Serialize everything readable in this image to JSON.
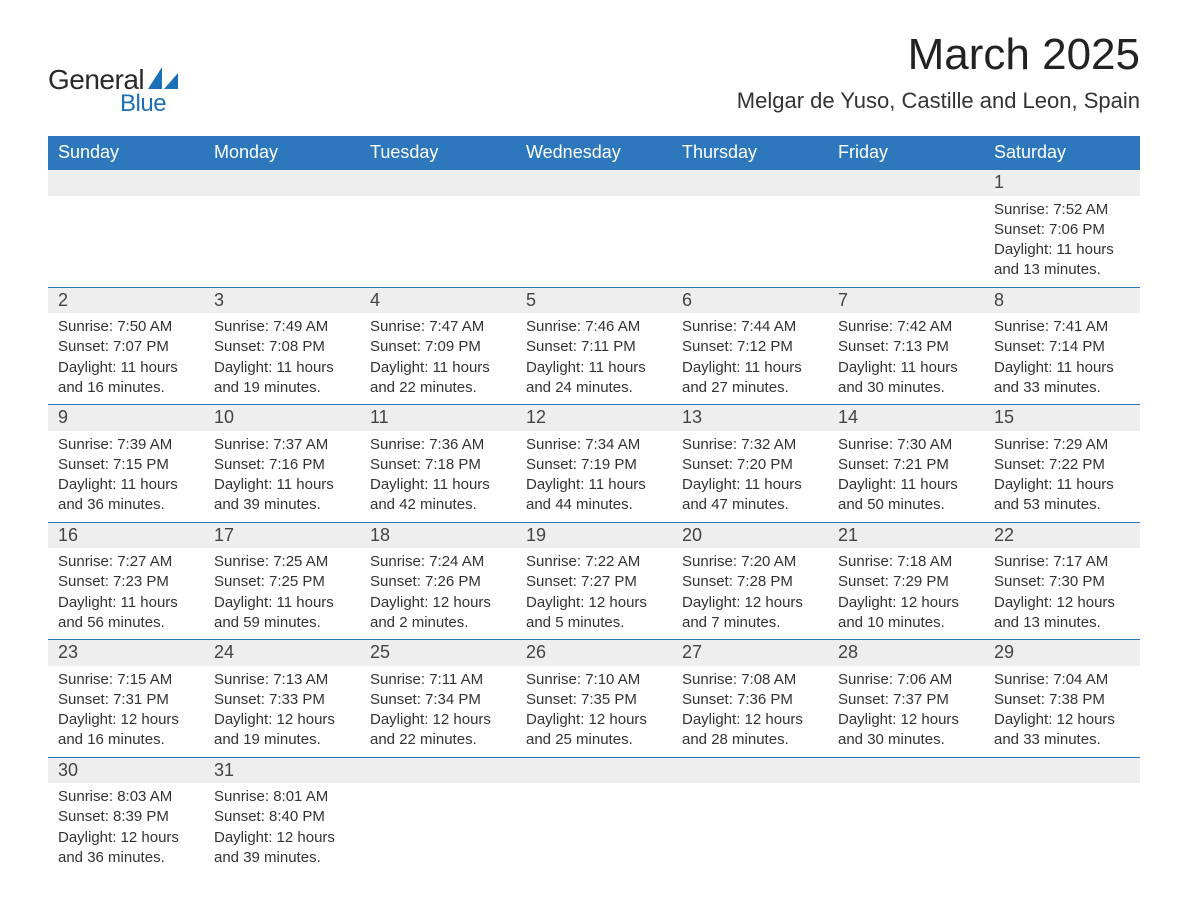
{
  "brand": {
    "word1": "General",
    "word2": "Blue",
    "accent_color": "#1d6fb8"
  },
  "title": "March 2025",
  "subtitle": "Melgar de Yuso, Castille and Leon, Spain",
  "styling": {
    "header_bg": "#2d78bc",
    "header_text": "#ffffff",
    "daynum_bg": "#eeeeee",
    "row_divider": "#2d78bc",
    "body_text": "#333333",
    "title_fontsize": 44,
    "subtitle_fontsize": 22,
    "weekday_fontsize": 18,
    "daynum_fontsize": 18,
    "detail_fontsize": 15,
    "page_bg": "#ffffff",
    "columns": 7
  },
  "weekdays": [
    "Sunday",
    "Monday",
    "Tuesday",
    "Wednesday",
    "Thursday",
    "Friday",
    "Saturday"
  ],
  "weeks": [
    [
      null,
      null,
      null,
      null,
      null,
      null,
      {
        "n": "1",
        "sunrise": "Sunrise: 7:52 AM",
        "sunset": "Sunset: 7:06 PM",
        "daylight": "Daylight: 11 hours and 13 minutes."
      }
    ],
    [
      {
        "n": "2",
        "sunrise": "Sunrise: 7:50 AM",
        "sunset": "Sunset: 7:07 PM",
        "daylight": "Daylight: 11 hours and 16 minutes."
      },
      {
        "n": "3",
        "sunrise": "Sunrise: 7:49 AM",
        "sunset": "Sunset: 7:08 PM",
        "daylight": "Daylight: 11 hours and 19 minutes."
      },
      {
        "n": "4",
        "sunrise": "Sunrise: 7:47 AM",
        "sunset": "Sunset: 7:09 PM",
        "daylight": "Daylight: 11 hours and 22 minutes."
      },
      {
        "n": "5",
        "sunrise": "Sunrise: 7:46 AM",
        "sunset": "Sunset: 7:11 PM",
        "daylight": "Daylight: 11 hours and 24 minutes."
      },
      {
        "n": "6",
        "sunrise": "Sunrise: 7:44 AM",
        "sunset": "Sunset: 7:12 PM",
        "daylight": "Daylight: 11 hours and 27 minutes."
      },
      {
        "n": "7",
        "sunrise": "Sunrise: 7:42 AM",
        "sunset": "Sunset: 7:13 PM",
        "daylight": "Daylight: 11 hours and 30 minutes."
      },
      {
        "n": "8",
        "sunrise": "Sunrise: 7:41 AM",
        "sunset": "Sunset: 7:14 PM",
        "daylight": "Daylight: 11 hours and 33 minutes."
      }
    ],
    [
      {
        "n": "9",
        "sunrise": "Sunrise: 7:39 AM",
        "sunset": "Sunset: 7:15 PM",
        "daylight": "Daylight: 11 hours and 36 minutes."
      },
      {
        "n": "10",
        "sunrise": "Sunrise: 7:37 AM",
        "sunset": "Sunset: 7:16 PM",
        "daylight": "Daylight: 11 hours and 39 minutes."
      },
      {
        "n": "11",
        "sunrise": "Sunrise: 7:36 AM",
        "sunset": "Sunset: 7:18 PM",
        "daylight": "Daylight: 11 hours and 42 minutes."
      },
      {
        "n": "12",
        "sunrise": "Sunrise: 7:34 AM",
        "sunset": "Sunset: 7:19 PM",
        "daylight": "Daylight: 11 hours and 44 minutes."
      },
      {
        "n": "13",
        "sunrise": "Sunrise: 7:32 AM",
        "sunset": "Sunset: 7:20 PM",
        "daylight": "Daylight: 11 hours and 47 minutes."
      },
      {
        "n": "14",
        "sunrise": "Sunrise: 7:30 AM",
        "sunset": "Sunset: 7:21 PM",
        "daylight": "Daylight: 11 hours and 50 minutes."
      },
      {
        "n": "15",
        "sunrise": "Sunrise: 7:29 AM",
        "sunset": "Sunset: 7:22 PM",
        "daylight": "Daylight: 11 hours and 53 minutes."
      }
    ],
    [
      {
        "n": "16",
        "sunrise": "Sunrise: 7:27 AM",
        "sunset": "Sunset: 7:23 PM",
        "daylight": "Daylight: 11 hours and 56 minutes."
      },
      {
        "n": "17",
        "sunrise": "Sunrise: 7:25 AM",
        "sunset": "Sunset: 7:25 PM",
        "daylight": "Daylight: 11 hours and 59 minutes."
      },
      {
        "n": "18",
        "sunrise": "Sunrise: 7:24 AM",
        "sunset": "Sunset: 7:26 PM",
        "daylight": "Daylight: 12 hours and 2 minutes."
      },
      {
        "n": "19",
        "sunrise": "Sunrise: 7:22 AM",
        "sunset": "Sunset: 7:27 PM",
        "daylight": "Daylight: 12 hours and 5 minutes."
      },
      {
        "n": "20",
        "sunrise": "Sunrise: 7:20 AM",
        "sunset": "Sunset: 7:28 PM",
        "daylight": "Daylight: 12 hours and 7 minutes."
      },
      {
        "n": "21",
        "sunrise": "Sunrise: 7:18 AM",
        "sunset": "Sunset: 7:29 PM",
        "daylight": "Daylight: 12 hours and 10 minutes."
      },
      {
        "n": "22",
        "sunrise": "Sunrise: 7:17 AM",
        "sunset": "Sunset: 7:30 PM",
        "daylight": "Daylight: 12 hours and 13 minutes."
      }
    ],
    [
      {
        "n": "23",
        "sunrise": "Sunrise: 7:15 AM",
        "sunset": "Sunset: 7:31 PM",
        "daylight": "Daylight: 12 hours and 16 minutes."
      },
      {
        "n": "24",
        "sunrise": "Sunrise: 7:13 AM",
        "sunset": "Sunset: 7:33 PM",
        "daylight": "Daylight: 12 hours and 19 minutes."
      },
      {
        "n": "25",
        "sunrise": "Sunrise: 7:11 AM",
        "sunset": "Sunset: 7:34 PM",
        "daylight": "Daylight: 12 hours and 22 minutes."
      },
      {
        "n": "26",
        "sunrise": "Sunrise: 7:10 AM",
        "sunset": "Sunset: 7:35 PM",
        "daylight": "Daylight: 12 hours and 25 minutes."
      },
      {
        "n": "27",
        "sunrise": "Sunrise: 7:08 AM",
        "sunset": "Sunset: 7:36 PM",
        "daylight": "Daylight: 12 hours and 28 minutes."
      },
      {
        "n": "28",
        "sunrise": "Sunrise: 7:06 AM",
        "sunset": "Sunset: 7:37 PM",
        "daylight": "Daylight: 12 hours and 30 minutes."
      },
      {
        "n": "29",
        "sunrise": "Sunrise: 7:04 AM",
        "sunset": "Sunset: 7:38 PM",
        "daylight": "Daylight: 12 hours and 33 minutes."
      }
    ],
    [
      {
        "n": "30",
        "sunrise": "Sunrise: 8:03 AM",
        "sunset": "Sunset: 8:39 PM",
        "daylight": "Daylight: 12 hours and 36 minutes."
      },
      {
        "n": "31",
        "sunrise": "Sunrise: 8:01 AM",
        "sunset": "Sunset: 8:40 PM",
        "daylight": "Daylight: 12 hours and 39 minutes."
      },
      null,
      null,
      null,
      null,
      null
    ]
  ]
}
